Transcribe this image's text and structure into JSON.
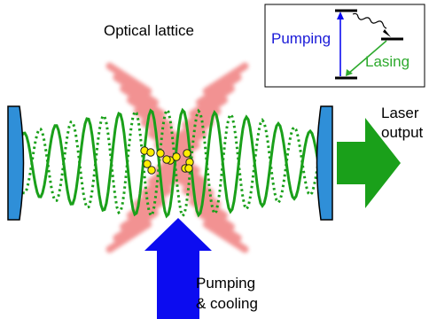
{
  "title": "Optical lattice",
  "laser_output": {
    "line1": "Laser",
    "line2": "output"
  },
  "pumping_cooling": {
    "line1": "Pumping",
    "line2": "& cooling"
  },
  "inset": {
    "pumping_label": "Pumping",
    "lasing_label": "Lasing"
  },
  "colors": {
    "lattice": "#f08080",
    "mirror": "#2f8fd8",
    "wave": "#1aa01a",
    "output_arrow": "#1aa01a",
    "pump_arrow": "#0c0cf0",
    "atom": "#ffee00",
    "pumping_text": "#1a1ad8",
    "lasing_text": "#2eaa2e"
  },
  "icons": [
    "mirror-left-icon",
    "mirror-right-icon",
    "laser-output-arrow-icon",
    "pumping-arrow-icon",
    "atom-icon",
    "wavy-decay-arrow-icon"
  ]
}
